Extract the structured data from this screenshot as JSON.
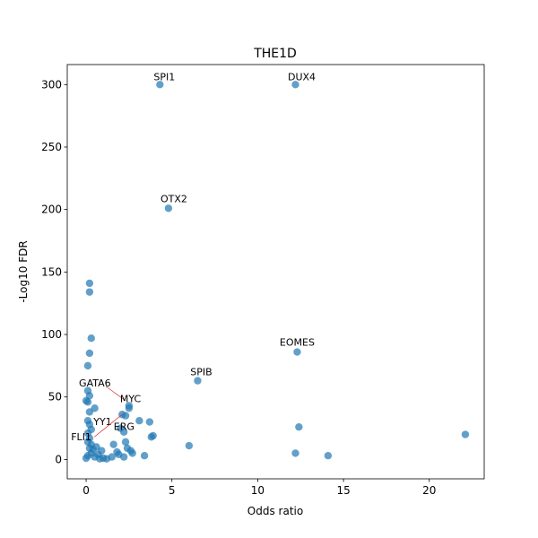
{
  "chart_data": {
    "type": "scatter",
    "title": "THE1D",
    "xlabel": "Odds ratio",
    "ylabel": "-Log10 FDR",
    "xlim": [
      -1.1,
      23.2
    ],
    "ylim": [
      -15.5,
      316
    ],
    "xticks": [
      0,
      5,
      10,
      15,
      20
    ],
    "yticks": [
      0,
      50,
      100,
      150,
      200,
      250,
      300
    ],
    "grid": false,
    "marker_color": "#1f77b4",
    "points": [
      {
        "x": 4.3,
        "y": 300
      },
      {
        "x": 12.2,
        "y": 300
      },
      {
        "x": 4.8,
        "y": 201
      },
      {
        "x": 0.2,
        "y": 141
      },
      {
        "x": 0.2,
        "y": 134
      },
      {
        "x": 0.3,
        "y": 97
      },
      {
        "x": 0.2,
        "y": 85
      },
      {
        "x": 12.3,
        "y": 86
      },
      {
        "x": 0.1,
        "y": 75
      },
      {
        "x": 6.5,
        "y": 63
      },
      {
        "x": 0.1,
        "y": 55
      },
      {
        "x": 0.2,
        "y": 51
      },
      {
        "x": 0.0,
        "y": 47
      },
      {
        "x": 0.1,
        "y": 46
      },
      {
        "x": 2.5,
        "y": 43
      },
      {
        "x": 2.5,
        "y": 41
      },
      {
        "x": 0.5,
        "y": 41
      },
      {
        "x": 0.2,
        "y": 38
      },
      {
        "x": 2.1,
        "y": 36
      },
      {
        "x": 2.3,
        "y": 35
      },
      {
        "x": 3.1,
        "y": 31
      },
      {
        "x": 3.7,
        "y": 30
      },
      {
        "x": 0.1,
        "y": 31
      },
      {
        "x": 0.2,
        "y": 28
      },
      {
        "x": 12.4,
        "y": 26
      },
      {
        "x": 2.0,
        "y": 25
      },
      {
        "x": 2.2,
        "y": 22
      },
      {
        "x": 0.3,
        "y": 24
      },
      {
        "x": 0.1,
        "y": 21
      },
      {
        "x": 22.1,
        "y": 20
      },
      {
        "x": 3.9,
        "y": 19
      },
      {
        "x": 3.8,
        "y": 18
      },
      {
        "x": 0.2,
        "y": 17
      },
      {
        "x": 2.3,
        "y": 14
      },
      {
        "x": 1.6,
        "y": 12
      },
      {
        "x": 6.0,
        "y": 11
      },
      {
        "x": 0.1,
        "y": 14
      },
      {
        "x": 0.3,
        "y": 12
      },
      {
        "x": 0.6,
        "y": 10
      },
      {
        "x": 2.4,
        "y": 9
      },
      {
        "x": 2.6,
        "y": 7
      },
      {
        "x": 1.8,
        "y": 6
      },
      {
        "x": 0.9,
        "y": 7
      },
      {
        "x": 0.4,
        "y": 8
      },
      {
        "x": 0.2,
        "y": 9
      },
      {
        "x": 12.2,
        "y": 5
      },
      {
        "x": 14.1,
        "y": 3
      },
      {
        "x": 3.4,
        "y": 3
      },
      {
        "x": 2.2,
        "y": 2
      },
      {
        "x": 1.5,
        "y": 2
      },
      {
        "x": 1.0,
        "y": 1
      },
      {
        "x": 0.5,
        "y": 2
      },
      {
        "x": 0.1,
        "y": 3
      },
      {
        "x": 0.0,
        "y": 1
      },
      {
        "x": 0.3,
        "y": 5
      },
      {
        "x": 0.7,
        "y": 4
      },
      {
        "x": 1.2,
        "y": 0.5
      },
      {
        "x": 1.9,
        "y": 4
      },
      {
        "x": 2.7,
        "y": 5
      },
      {
        "x": 0.8,
        "y": 0.5
      }
    ],
    "annotations": [
      {
        "text": "SPI1",
        "x": 4.3,
        "y": 300
      },
      {
        "text": "DUX4",
        "x": 12.2,
        "y": 300
      },
      {
        "text": "OTX2",
        "x": 4.8,
        "y": 201
      },
      {
        "text": "EOMES",
        "x": 12.3,
        "y": 86
      },
      {
        "text": "SPIB",
        "x": 6.5,
        "y": 63
      },
      {
        "text": "GATA6",
        "x": 2.3,
        "y": 47
      },
      {
        "text": "MYC",
        "x": 2.5,
        "y": 43
      },
      {
        "text": "YY1",
        "x": 2.1,
        "y": 36
      },
      {
        "text": "FLI1",
        "x": 2.1,
        "y": 36
      },
      {
        "text": "ERG",
        "x": 2.6,
        "y": 30
      }
    ]
  }
}
